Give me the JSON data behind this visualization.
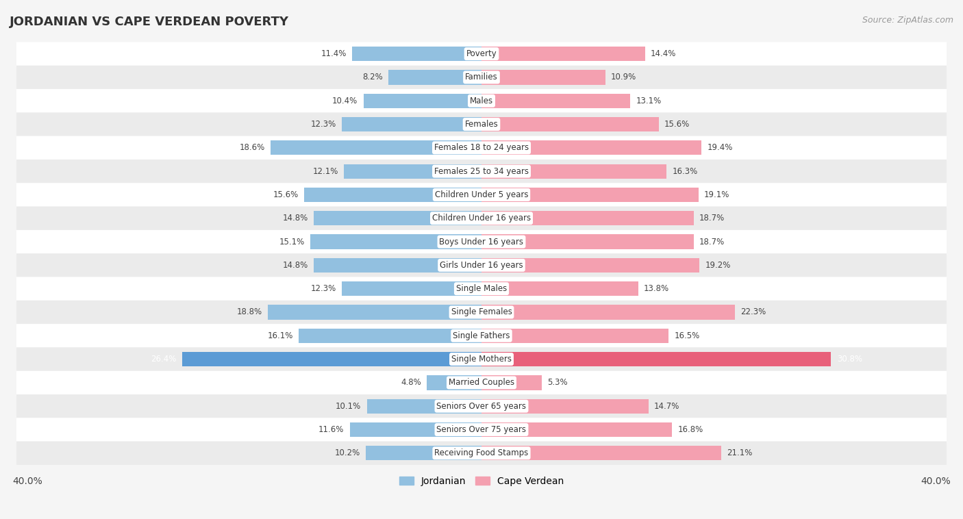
{
  "title": "JORDANIAN VS CAPE VERDEAN POVERTY",
  "source": "Source: ZipAtlas.com",
  "categories": [
    "Poverty",
    "Families",
    "Males",
    "Females",
    "Females 18 to 24 years",
    "Females 25 to 34 years",
    "Children Under 5 years",
    "Children Under 16 years",
    "Boys Under 16 years",
    "Girls Under 16 years",
    "Single Males",
    "Single Females",
    "Single Fathers",
    "Single Mothers",
    "Married Couples",
    "Seniors Over 65 years",
    "Seniors Over 75 years",
    "Receiving Food Stamps"
  ],
  "jordanian": [
    11.4,
    8.2,
    10.4,
    12.3,
    18.6,
    12.1,
    15.6,
    14.8,
    15.1,
    14.8,
    12.3,
    18.8,
    16.1,
    26.4,
    4.8,
    10.1,
    11.6,
    10.2
  ],
  "cape_verdean": [
    14.4,
    10.9,
    13.1,
    15.6,
    19.4,
    16.3,
    19.1,
    18.7,
    18.7,
    19.2,
    13.8,
    22.3,
    16.5,
    30.8,
    5.3,
    14.7,
    16.8,
    21.1
  ],
  "jordanian_color": "#92c0e0",
  "cape_verdean_color": "#f4a0b0",
  "single_mothers_jordanian_color": "#5b9bd5",
  "single_mothers_cape_verdean_color": "#e8607a",
  "bar_height": 0.62,
  "x_max": 40.0,
  "background_color": "#f5f5f5",
  "row_colors": [
    "#ffffff",
    "#ebebeb"
  ],
  "title_fontsize": 13,
  "label_fontsize": 8.5,
  "value_fontsize": 8.5,
  "source_fontsize": 9,
  "jordanian_legend": "Jordanian",
  "cape_verdean_legend": "Cape Verdean"
}
